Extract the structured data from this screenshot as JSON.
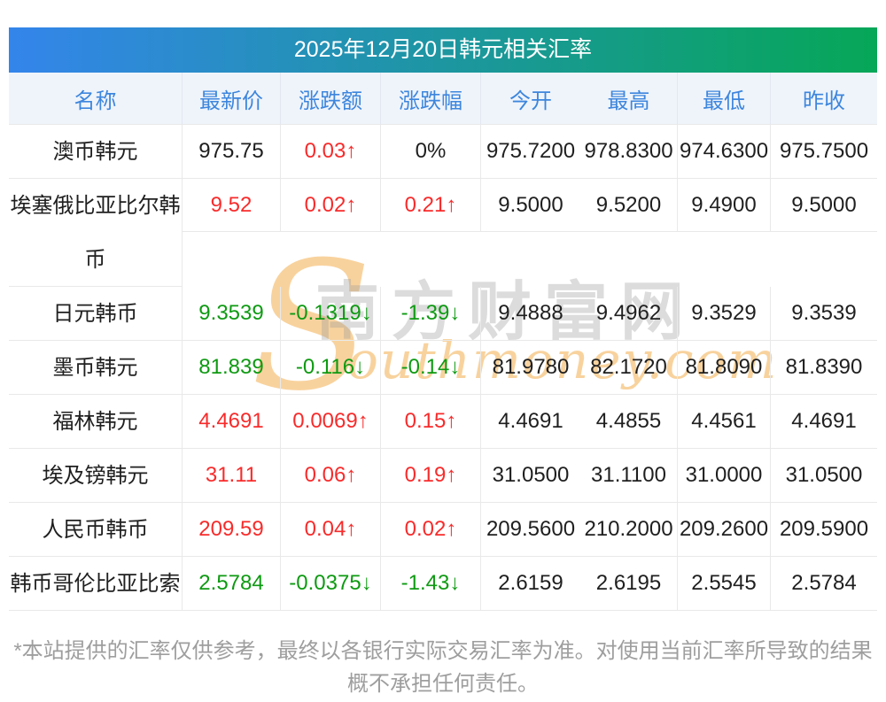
{
  "title": "2025年12月20日韩元相关汇率",
  "colors": {
    "gstart": "#3485eb",
    "gend": "#06a757",
    "headerBg": "#eff4fb",
    "headerText": "#3d86dd",
    "border": "#e9e9e9",
    "borderHead": "#e2e7f0",
    "black": "#1f1f1f",
    "red": "#f82b2b",
    "green": "#0e9a12",
    "footerText": "#9e9e9e",
    "wmOrange": "rgba(246,199,132,0.80)",
    "wmGrey": "rgba(155,155,155,0.35)"
  },
  "table": {
    "headers": [
      "名称",
      "最新价",
      "涨跌额",
      "涨跌幅",
      "今开",
      "最高",
      "最低",
      "昨收"
    ],
    "rows": [
      {
        "tall": false,
        "cells": [
          {
            "t": "澳币韩元",
            "c": "name"
          },
          {
            "t": "975.75",
            "c": "black"
          },
          {
            "t": "0.03↑",
            "c": "red"
          },
          {
            "t": "0%",
            "c": "black"
          },
          {
            "t": "975.7200",
            "c": "black"
          },
          {
            "t": "978.8300",
            "c": "black"
          },
          {
            "t": "974.6300",
            "c": "black"
          },
          {
            "t": "975.7500",
            "c": "black"
          }
        ]
      },
      {
        "tall": true,
        "cells": [
          {
            "t": "埃塞俄比亚比尔韩\n币",
            "c": "name"
          },
          {
            "t": "9.52",
            "c": "red"
          },
          {
            "t": "0.02↑",
            "c": "red"
          },
          {
            "t": "0.21↑",
            "c": "red"
          },
          {
            "t": "9.5000",
            "c": "black"
          },
          {
            "t": "9.5200",
            "c": "black"
          },
          {
            "t": "9.4900",
            "c": "black"
          },
          {
            "t": "9.5000",
            "c": "black"
          }
        ]
      },
      {
        "tall": false,
        "cells": [
          {
            "t": "日元韩币",
            "c": "name"
          },
          {
            "t": "9.3539",
            "c": "green"
          },
          {
            "t": "-0.1319↓",
            "c": "green"
          },
          {
            "t": "-1.39↓",
            "c": "green"
          },
          {
            "t": "9.4888",
            "c": "black"
          },
          {
            "t": "9.4962",
            "c": "black"
          },
          {
            "t": "9.3529",
            "c": "black"
          },
          {
            "t": "9.3539",
            "c": "black"
          }
        ]
      },
      {
        "tall": false,
        "cells": [
          {
            "t": "墨币韩元",
            "c": "name"
          },
          {
            "t": "81.839",
            "c": "green"
          },
          {
            "t": "-0.116↓",
            "c": "green"
          },
          {
            "t": "-0.14↓",
            "c": "green"
          },
          {
            "t": "81.9780",
            "c": "black"
          },
          {
            "t": "82.1720",
            "c": "black"
          },
          {
            "t": "81.8090",
            "c": "black"
          },
          {
            "t": "81.8390",
            "c": "black"
          }
        ]
      },
      {
        "tall": false,
        "cells": [
          {
            "t": "福林韩元",
            "c": "name"
          },
          {
            "t": "4.4691",
            "c": "red"
          },
          {
            "t": "0.0069↑",
            "c": "red"
          },
          {
            "t": "0.15↑",
            "c": "red"
          },
          {
            "t": "4.4691",
            "c": "black"
          },
          {
            "t": "4.4855",
            "c": "black"
          },
          {
            "t": "4.4561",
            "c": "black"
          },
          {
            "t": "4.4691",
            "c": "black"
          }
        ]
      },
      {
        "tall": false,
        "cells": [
          {
            "t": "埃及镑韩元",
            "c": "name"
          },
          {
            "t": "31.11",
            "c": "red"
          },
          {
            "t": "0.06↑",
            "c": "red"
          },
          {
            "t": "0.19↑",
            "c": "red"
          },
          {
            "t": "31.0500",
            "c": "black"
          },
          {
            "t": "31.1100",
            "c": "black"
          },
          {
            "t": "31.0000",
            "c": "black"
          },
          {
            "t": "31.0500",
            "c": "black"
          }
        ]
      },
      {
        "tall": false,
        "cells": [
          {
            "t": "人民币韩币",
            "c": "name"
          },
          {
            "t": "209.59",
            "c": "red"
          },
          {
            "t": "0.04↑",
            "c": "red"
          },
          {
            "t": "0.02↑",
            "c": "red"
          },
          {
            "t": "209.5600",
            "c": "black"
          },
          {
            "t": "210.2000",
            "c": "black"
          },
          {
            "t": "209.2600",
            "c": "black"
          },
          {
            "t": "209.5900",
            "c": "black"
          }
        ]
      },
      {
        "tall": false,
        "cells": [
          {
            "t": "韩币哥伦比亚比索",
            "c": "name"
          },
          {
            "t": "2.5784",
            "c": "green"
          },
          {
            "t": "-0.0375↓",
            "c": "green"
          },
          {
            "t": "-1.43↓",
            "c": "green"
          },
          {
            "t": "2.6159",
            "c": "black"
          },
          {
            "t": "2.6195",
            "c": "black"
          },
          {
            "t": "2.5545",
            "c": "black"
          },
          {
            "t": "2.5784",
            "c": "black"
          }
        ]
      }
    ]
  },
  "watermark": {
    "swoosh": "S",
    "script": "outhmoney.com",
    "hanzi": "南方财富网"
  },
  "footer": {
    "disclaimer": "*本站提供的汇率仅供参考，最终以各银行实际交易汇率为准。对使用当前汇率所导致的结果\n概不承担任何责任。"
  }
}
